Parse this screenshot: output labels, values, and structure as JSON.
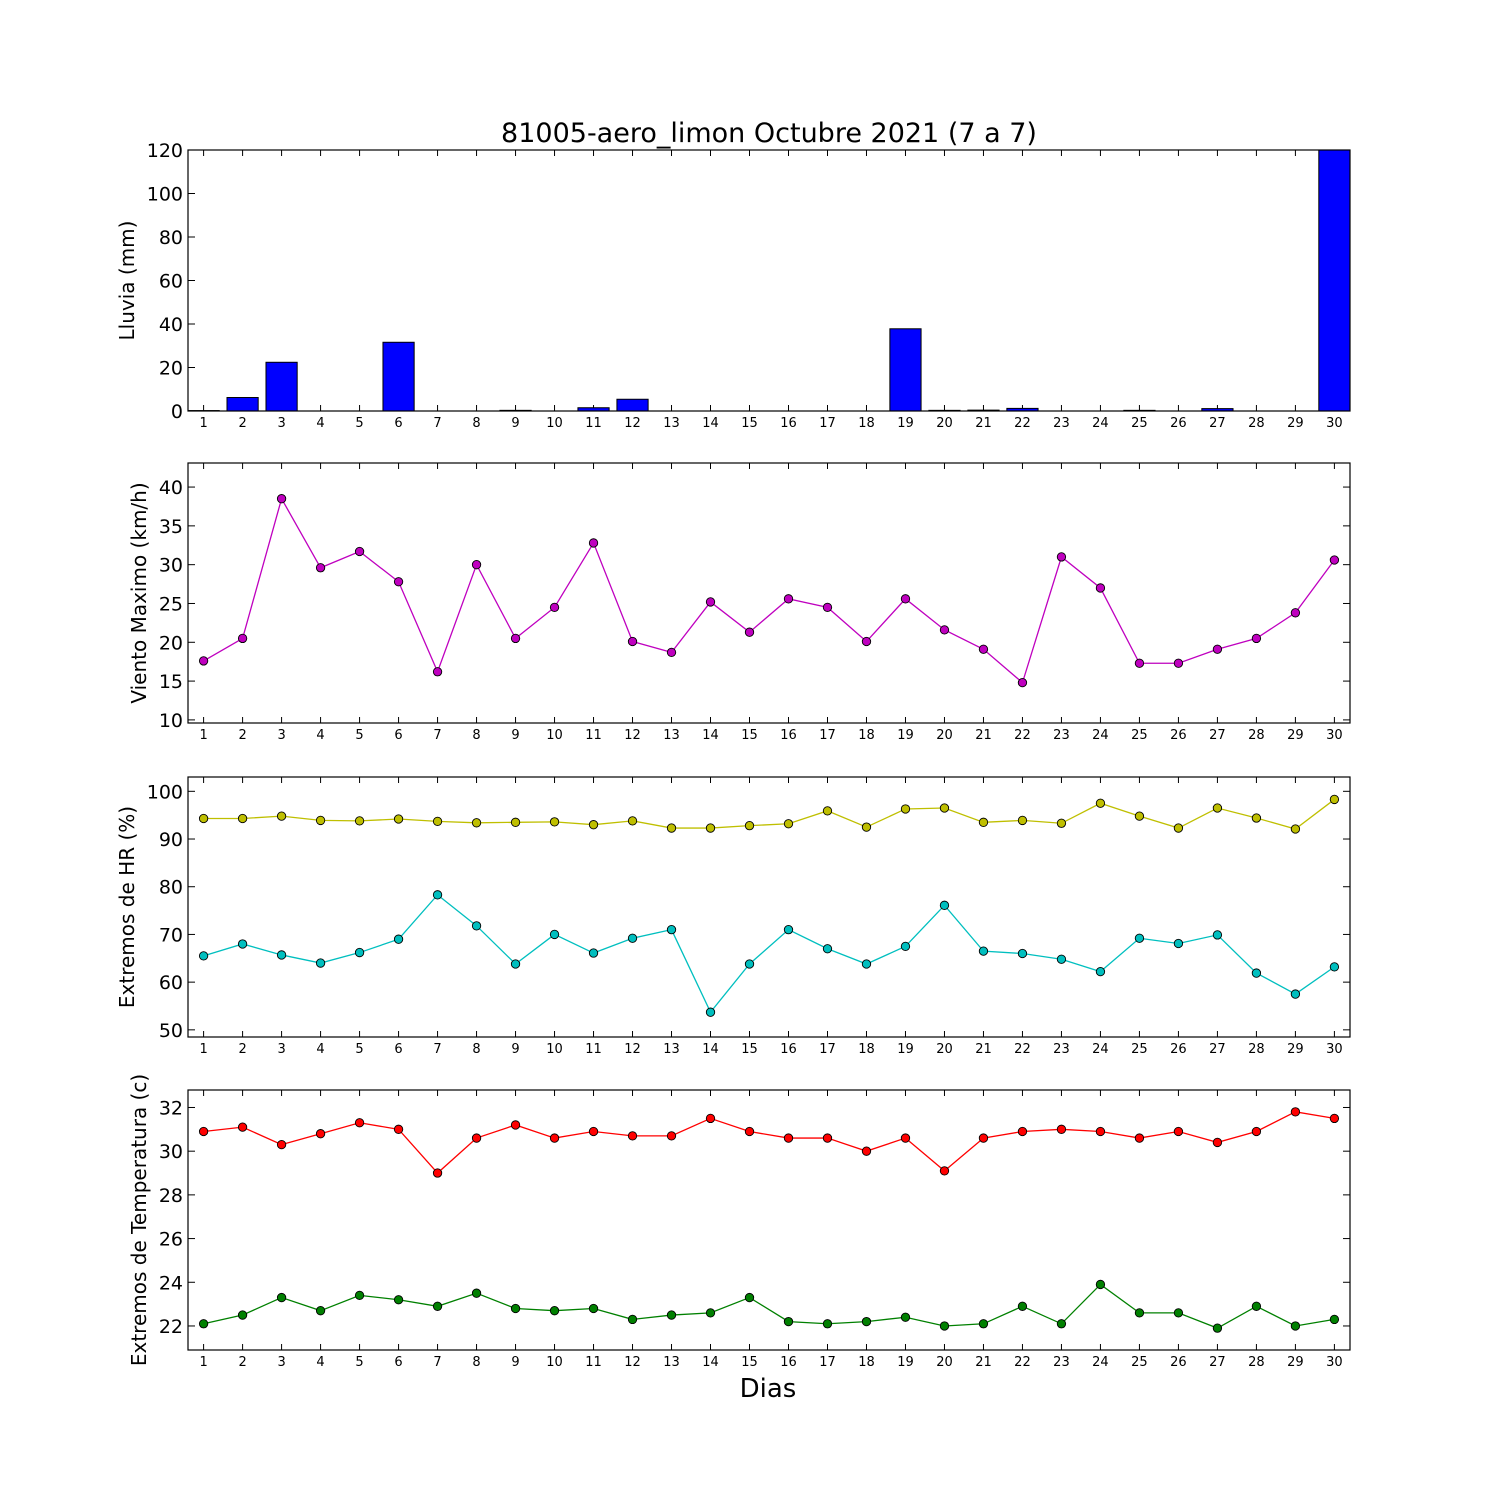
{
  "title": "81005-aero_limon Octubre 2021  (7 a 7)",
  "xlabel": "Dias",
  "colors": {
    "rain": "#0000ff",
    "wind": "#bf00bf",
    "hr_max": "#bfbf00",
    "hr_min": "#00bfbf",
    "temp_max": "#ff0000",
    "temp_min": "#008000"
  },
  "chart_data": [
    {
      "type": "bar",
      "ylabel": "Lluvia (mm)",
      "ylim": [
        0,
        120
      ],
      "yticks": [
        0,
        20,
        40,
        60,
        80,
        100,
        120
      ],
      "categories": [
        1,
        2,
        3,
        4,
        5,
        6,
        7,
        8,
        9,
        10,
        11,
        12,
        13,
        14,
        15,
        16,
        17,
        18,
        19,
        20,
        21,
        22,
        23,
        24,
        25,
        26,
        27,
        28,
        29,
        30
      ],
      "series": [
        {
          "values": [
            0.2,
            6.2,
            22.4,
            0,
            0,
            31.6,
            0,
            0,
            0.3,
            0,
            1.5,
            5.4,
            0,
            0,
            0,
            0,
            0,
            0,
            37.8,
            0.3,
            0.4,
            1.2,
            0,
            0,
            0.3,
            0,
            1.1,
            0,
            0,
            120
          ],
          "color_key": "rain"
        }
      ]
    },
    {
      "type": "line",
      "ylabel": "Viento Maximo (km/h)",
      "ylim": [
        9.6,
        43.1
      ],
      "yticks": [
        10,
        15,
        20,
        25,
        30,
        35,
        40
      ],
      "x": [
        1,
        2,
        3,
        4,
        5,
        6,
        7,
        8,
        9,
        10,
        11,
        12,
        13,
        14,
        15,
        16,
        17,
        18,
        19,
        20,
        21,
        22,
        23,
        24,
        25,
        26,
        27,
        28,
        29,
        30
      ],
      "series": [
        {
          "values": [
            17.6,
            20.5,
            38.5,
            29.6,
            31.7,
            27.8,
            16.2,
            30.0,
            20.5,
            24.5,
            32.8,
            20.1,
            18.7,
            25.2,
            21.3,
            25.6,
            24.5,
            20.1,
            25.6,
            21.6,
            19.1,
            14.8,
            31.0,
            27.0,
            17.3,
            17.3,
            19.1,
            20.5,
            23.8,
            30.6
          ],
          "color_key": "wind"
        }
      ]
    },
    {
      "type": "line",
      "ylabel": "Extremos de HR (%)",
      "ylim": [
        48.5,
        103
      ],
      "yticks": [
        50,
        60,
        70,
        80,
        90,
        100
      ],
      "x": [
        1,
        2,
        3,
        4,
        5,
        6,
        7,
        8,
        9,
        10,
        11,
        12,
        13,
        14,
        15,
        16,
        17,
        18,
        19,
        20,
        21,
        22,
        23,
        24,
        25,
        26,
        27,
        28,
        29,
        30
      ],
      "series": [
        {
          "values": [
            94.3,
            94.3,
            94.8,
            93.9,
            93.8,
            94.2,
            93.7,
            93.4,
            93.5,
            93.6,
            93.0,
            93.8,
            92.3,
            92.3,
            92.8,
            93.2,
            95.9,
            92.5,
            96.3,
            96.5,
            93.5,
            93.9,
            93.3,
            97.5,
            94.8,
            92.3,
            96.5,
            94.4,
            92.1,
            98.3
          ],
          "color_key": "hr_max"
        },
        {
          "values": [
            65.5,
            68.0,
            65.7,
            64.0,
            66.2,
            69.0,
            78.3,
            71.8,
            63.8,
            70.0,
            66.1,
            69.2,
            71.0,
            53.7,
            63.8,
            71.0,
            67.0,
            63.8,
            67.5,
            76.1,
            66.5,
            66.0,
            64.8,
            62.2,
            69.2,
            68.1,
            69.9,
            61.9,
            57.5,
            63.2
          ],
          "color_key": "hr_min"
        }
      ]
    },
    {
      "type": "line",
      "ylabel": "Extremos de Temperatura (c)",
      "ylim": [
        20.9,
        32.8
      ],
      "yticks": [
        22,
        24,
        26,
        28,
        30,
        32
      ],
      "x": [
        1,
        2,
        3,
        4,
        5,
        6,
        7,
        8,
        9,
        10,
        11,
        12,
        13,
        14,
        15,
        16,
        17,
        18,
        19,
        20,
        21,
        22,
        23,
        24,
        25,
        26,
        27,
        28,
        29,
        30
      ],
      "series": [
        {
          "values": [
            30.9,
            31.1,
            30.3,
            30.8,
            31.3,
            31.0,
            29.0,
            30.6,
            31.2,
            30.6,
            30.9,
            30.7,
            30.7,
            31.5,
            30.9,
            30.6,
            30.6,
            30.0,
            30.6,
            29.1,
            30.6,
            30.9,
            31.0,
            30.9,
            30.6,
            30.9,
            30.4,
            30.9,
            31.8,
            31.5
          ],
          "color_key": "temp_max"
        },
        {
          "values": [
            22.1,
            22.5,
            23.3,
            22.7,
            23.4,
            23.2,
            22.9,
            23.5,
            22.8,
            22.7,
            22.8,
            22.3,
            22.5,
            22.6,
            23.3,
            22.2,
            22.1,
            22.2,
            22.4,
            22.0,
            22.1,
            22.9,
            22.1,
            23.9,
            22.6,
            22.6,
            21.9,
            22.9,
            22.0,
            22.3
          ],
          "color_key": "temp_min"
        }
      ]
    }
  ]
}
